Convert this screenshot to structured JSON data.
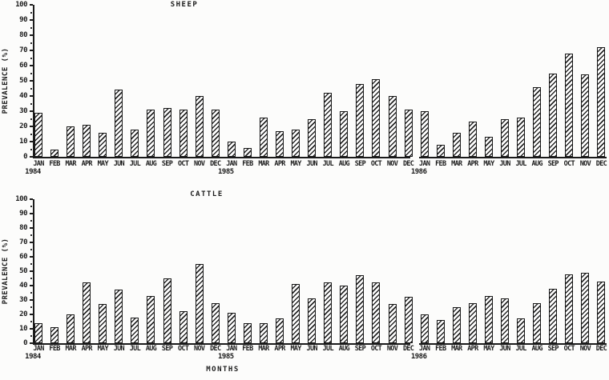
{
  "chart_data": [
    {
      "type": "bar",
      "title": "SHEEP",
      "ylabel": "PREVALENCE (%)",
      "xlabel": "",
      "ylim": [
        0,
        100
      ],
      "ytick_step": 10,
      "ytick_minor": 5,
      "grid": false,
      "legend": "none",
      "bar_style": "diagonal-hatch",
      "categories": [
        "JAN",
        "FEB",
        "MAR",
        "APR",
        "MAY",
        "JUN",
        "JUL",
        "AUG",
        "SEP",
        "OCT",
        "NOV",
        "DEC",
        "JAN",
        "FEB",
        "MAR",
        "APR",
        "MAY",
        "JUN",
        "JUL",
        "AUG",
        "SEP",
        "OCT",
        "NOV",
        "DEC",
        "JAN",
        "FEB",
        "MAR",
        "APR",
        "MAY",
        "JUN",
        "JUL",
        "AUG",
        "SEP",
        "OCT",
        "NOV",
        "DEC"
      ],
      "year_labels": [
        {
          "label": "1984",
          "index": 0
        },
        {
          "label": "1985",
          "index": 12
        },
        {
          "label": "1986",
          "index": 24
        }
      ],
      "axis_break_before_index": 24,
      "values": [
        29,
        5,
        20,
        21,
        16,
        44,
        18,
        31,
        32,
        31,
        40,
        31,
        10,
        6,
        26,
        17,
        18,
        25,
        42,
        30,
        48,
        51,
        40,
        31,
        30,
        8,
        16,
        23,
        13,
        25,
        26,
        46,
        55,
        68,
        54,
        72
      ]
    },
    {
      "type": "bar",
      "title": "CATTLE",
      "ylabel": "PREVALENCE (%)",
      "xlabel": "MONTHS",
      "ylim": [
        0,
        100
      ],
      "ytick_step": 10,
      "ytick_minor": 5,
      "grid": false,
      "legend": "none",
      "bar_style": "diagonal-hatch",
      "categories": [
        "JAN",
        "FEB",
        "MAR",
        "APR",
        "MAY",
        "JUN",
        "JUL",
        "AUG",
        "SEP",
        "OCT",
        "NOV",
        "DEC",
        "JAN",
        "FEB",
        "MAR",
        "APR",
        "MAY",
        "JUN",
        "JUL",
        "AUG",
        "SEP",
        "OCT",
        "NOV",
        "DEC",
        "JAN",
        "FEB",
        "MAR",
        "APR",
        "MAY",
        "JUN",
        "JUL",
        "AUG",
        "SEP",
        "OCT",
        "NOV",
        "DEC"
      ],
      "year_labels": [
        {
          "label": "1984",
          "index": 0
        },
        {
          "label": "1985",
          "index": 12
        },
        {
          "label": "1986",
          "index": 24
        }
      ],
      "axis_break_before_index": 24,
      "values": [
        14,
        11,
        20,
        42,
        27,
        37,
        18,
        33,
        45,
        22,
        55,
        28,
        21,
        14,
        14,
        17,
        41,
        31,
        42,
        40,
        47,
        42,
        27,
        32,
        20,
        16,
        25,
        28,
        33,
        31,
        17,
        28,
        38,
        48,
        49,
        43
      ]
    }
  ]
}
